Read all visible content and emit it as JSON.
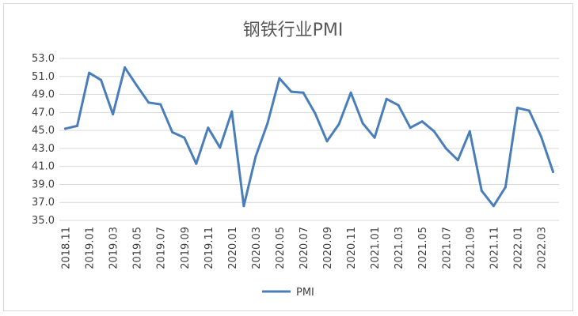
{
  "chart_data": {
    "type": "line",
    "title": "钢铁行业PMI",
    "xlabel": "",
    "ylabel": "",
    "ylim": [
      35.0,
      53.0
    ],
    "yticks": [
      "35.0",
      "37.0",
      "39.0",
      "41.0",
      "43.0",
      "45.0",
      "47.0",
      "49.0",
      "51.0",
      "53.0"
    ],
    "grid": true,
    "legend_position": "bottom",
    "color": "#4a7ebb",
    "categories": [
      "2018.11",
      "2018.12",
      "2019.01",
      "2019.02",
      "2019.03",
      "2019.04",
      "2019.05",
      "2019.06",
      "2019.07",
      "2019.08",
      "2019.09",
      "2019.10",
      "2019.11",
      "2019.12",
      "2020.01",
      "2020.02",
      "2020.03",
      "2020.04",
      "2020.05",
      "2020.06",
      "2020.07",
      "2020.08",
      "2020.09",
      "2020.10",
      "2020.11",
      "2020.12",
      "2021.01",
      "2021.02",
      "2021.03",
      "2021.04",
      "2021.05",
      "2021.06",
      "2021.07",
      "2021.08",
      "2021.09",
      "2021.10",
      "2021.11",
      "2021.12",
      "2022.01",
      "2022.02",
      "2022.03",
      "2022.04"
    ],
    "shown_tick_labels": [
      "2018.11",
      "2019.01",
      "2019.03",
      "2019.05",
      "2019.07",
      "2019.09",
      "2019.11",
      "2020.01",
      "2020.03",
      "2020.05",
      "2020.07",
      "2020.09",
      "2020.11",
      "2021.01",
      "2021.03",
      "2021.05",
      "2021.07",
      "2021.09",
      "2021.11",
      "2022.01",
      "2022.03"
    ],
    "series": [
      {
        "name": "PMI",
        "values": [
          45.2,
          45.5,
          51.4,
          50.6,
          46.8,
          52.0,
          50.0,
          48.1,
          47.9,
          44.8,
          44.2,
          41.3,
          45.3,
          43.1,
          47.1,
          36.6,
          42.1,
          45.8,
          50.8,
          49.3,
          49.2,
          46.9,
          43.8,
          45.7,
          49.2,
          45.8,
          44.2,
          48.5,
          47.8,
          45.3,
          46.0,
          44.9,
          43.0,
          41.7,
          44.9,
          38.3,
          36.6,
          38.7,
          47.5,
          47.2,
          44.3,
          40.4
        ]
      }
    ]
  }
}
